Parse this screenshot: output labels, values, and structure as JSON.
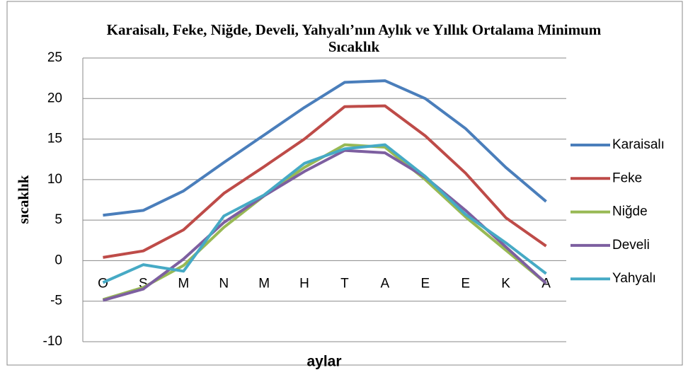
{
  "chart_data": {
    "type": "line",
    "title": "Karaisalı, Feke, Niğde, Develi, Yahyalı’nın Aylık ve Yıllık Ortalama Minimum Sıcaklık",
    "ylabel": "sıcaklık",
    "xlabel": "aylar",
    "categories": [
      "O",
      "Ş",
      "M",
      "N",
      "M",
      "H",
      "T",
      "A",
      "E",
      "E",
      "K",
      "A"
    ],
    "ylim": [
      -10,
      25
    ],
    "yticks": [
      -10,
      -5,
      0,
      5,
      10,
      15,
      20,
      25
    ],
    "grid": true,
    "legend": "right",
    "series": [
      {
        "name": "Karaisalı",
        "color": "#4a7ebb",
        "values": [
          5.6,
          6.2,
          8.6,
          12.1,
          15.5,
          18.9,
          22.0,
          22.2,
          20.0,
          16.3,
          11.5,
          7.3
        ]
      },
      {
        "name": "Feke",
        "color": "#be4b48",
        "values": [
          0.4,
          1.2,
          3.8,
          8.3,
          11.6,
          15.0,
          19.0,
          19.1,
          15.4,
          10.8,
          5.3,
          1.8
        ]
      },
      {
        "name": "Niğde",
        "color": "#98b954",
        "values": [
          -4.8,
          -3.3,
          -0.6,
          4.1,
          8.0,
          11.5,
          14.3,
          14.0,
          10.0,
          5.4,
          1.3,
          -2.8
        ]
      },
      {
        "name": "Develi",
        "color": "#7d5fa0",
        "values": [
          -4.9,
          -3.5,
          0.2,
          4.7,
          8.0,
          11.0,
          13.6,
          13.3,
          10.3,
          6.2,
          1.7,
          -2.8
        ]
      },
      {
        "name": "Yahyalı",
        "color": "#46aac5",
        "values": [
          -2.7,
          -0.5,
          -1.3,
          5.5,
          8.1,
          12.0,
          13.8,
          14.3,
          10.4,
          5.7,
          2.2,
          -1.6
        ]
      }
    ]
  }
}
